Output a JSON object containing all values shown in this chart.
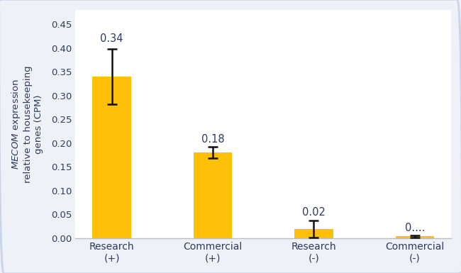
{
  "categories": [
    "Research\n(+)",
    "Commercial\n(+)",
    "Research\n(-)",
    "Commercial\n(-)"
  ],
  "values": [
    0.34,
    0.18,
    0.02,
    0.004
  ],
  "errors": [
    0.058,
    0.012,
    0.018,
    0.002
  ],
  "bar_color": "#FFC107",
  "error_color": "#111111",
  "value_labels": [
    "0.34",
    "0.18",
    "0.02",
    "0...."
  ],
  "ylabel": "$\\it{MECOM}$ expression\nrelative to housekeeping\ngenes (CPM)",
  "ylim": [
    0,
    0.48
  ],
  "yticks": [
    0.0,
    0.05,
    0.1,
    0.15,
    0.2,
    0.25,
    0.3,
    0.35,
    0.4,
    0.45
  ],
  "figure_bg_color": "#eef1f7",
  "plot_bg_color": "#ffffff",
  "tick_color": "#2d3a5a",
  "label_color": "#2d3a5a",
  "bar_width": 0.38,
  "figsize": [
    6.5,
    3.85
  ],
  "dpi": 100,
  "border_color": "#c8d4e8"
}
